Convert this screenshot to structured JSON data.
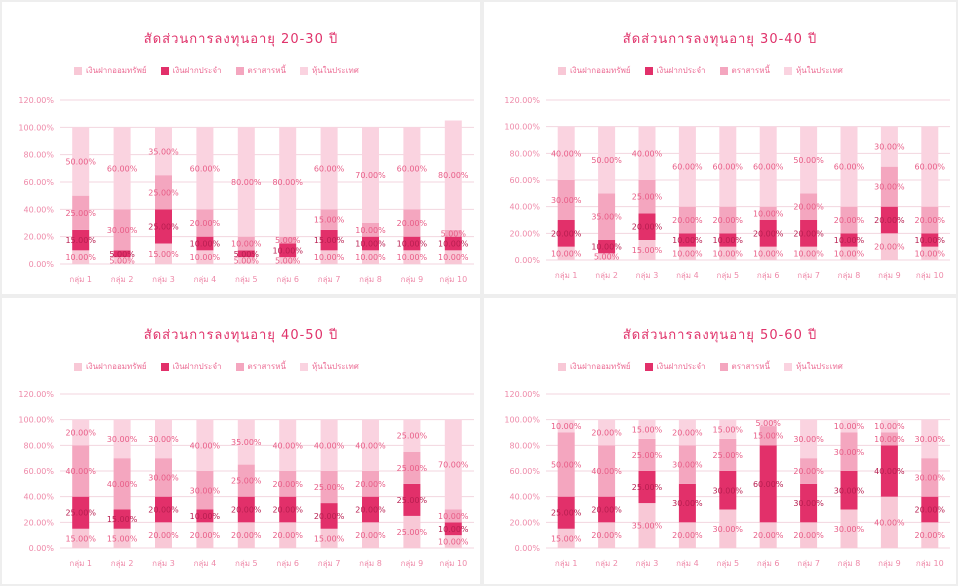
{
  "colors": {
    "s1": "#f8c8d6",
    "s2": "#e2306a",
    "s3": "#f4a6bf",
    "s4": "#fad3e0",
    "grid": "#f3d6df",
    "axis_text": "#ee8aa9",
    "label_text": "#e85d87",
    "title": "#e0336b"
  },
  "chart_data": [
    {
      "type": "bar",
      "stacked": true,
      "title": "สัดส่วนการลงทุนอายุ 20-30 ปี",
      "categories": [
        "กลุ่ม 1",
        "กลุ่ม 2",
        "กลุ่ม 3",
        "กลุ่ม 4",
        "กลุ่ม 5",
        "กลุ่ม 6",
        "กลุ่ม 7",
        "กลุ่ม 8",
        "กลุ่ม 9",
        "กลุ่ม 10"
      ],
      "ylim": [
        0,
        1.2
      ],
      "yticks": [
        "0.00%",
        "20.00%",
        "40.00%",
        "60.00%",
        "80.00%",
        "100.00%",
        "120.00%"
      ],
      "legend": [
        "เงินฝากออมทรัพย์",
        "เงินฝากประจำ",
        "ตราสารหนี้",
        "หุ้นในประเทศ"
      ],
      "legend_position": "top",
      "series": [
        {
          "name": "เงินฝากออมทรัพย์",
          "values": [
            0.1,
            0.05,
            0.15,
            0.1,
            0.05,
            0.05,
            0.1,
            0.1,
            0.1,
            0.1
          ]
        },
        {
          "name": "เงินฝากประจำ",
          "values": [
            0.15,
            0.05,
            0.25,
            0.1,
            0.05,
            0.1,
            0.15,
            0.1,
            0.1,
            0.1
          ]
        },
        {
          "name": "ตราสารหนี้",
          "values": [
            0.25,
            0.3,
            0.25,
            0.2,
            0.1,
            0.05,
            0.15,
            0.1,
            0.2,
            0.05
          ]
        },
        {
          "name": "หุ้นในประเทศ",
          "values": [
            0.5,
            0.6,
            0.35,
            0.6,
            0.8,
            0.8,
            0.6,
            0.7,
            0.6,
            0.8
          ]
        }
      ],
      "labels": [
        [
          "10.00%",
          "5.00%",
          "15.00%",
          "10.00%",
          "5.00%",
          "5.00%",
          "10.00%",
          "10.00%",
          "10.00%",
          "10.00%"
        ],
        [
          "15.00%",
          "5.00%",
          "25.00%",
          "10.00%",
          "5.00%",
          "10.00%",
          "15.00%",
          "10.00%",
          "10.00%",
          "10.00%"
        ],
        [
          "25.00%",
          "30.00%",
          "25.00%",
          "20.00%",
          "10.00%",
          "5.00%",
          "15.00%",
          "10.00%",
          "20.00%",
          "5.00%"
        ],
        [
          "50.00%",
          "60.00%",
          "35.00%",
          "60.00%",
          "80.00%",
          "80.00%",
          "60.00%",
          "70.00%",
          "60.00%",
          "80.00%"
        ]
      ]
    },
    {
      "type": "bar",
      "stacked": true,
      "title": "สัดส่วนการลงทุนอายุ 30-40 ปี",
      "categories": [
        "กลุ่ม 1",
        "กลุ่ม 2",
        "กลุ่ม 3",
        "กลุ่ม 4",
        "กลุ่ม 5",
        "กลุ่ม 6",
        "กลุ่ม 7",
        "กลุ่ม 8",
        "กลุ่ม 9",
        "กลุ่ม 10"
      ],
      "ylim": [
        0,
        1.2
      ],
      "yticks": [
        "0.00%",
        "20.00%",
        "40.00%",
        "60.00%",
        "80.00%",
        "100.00%",
        "120.00%"
      ],
      "legend": [
        "เงินฝากออมทรัพย์",
        "เงินฝากประจำ",
        "ตราสารหนี้",
        "หุ้นในประเทศ"
      ],
      "legend_position": "top",
      "series": [
        {
          "name": "เงินฝากออมทรัพย์",
          "values": [
            0.1,
            0.05,
            0.15,
            0.1,
            0.1,
            0.1,
            0.1,
            0.1,
            0.2,
            0.1
          ]
        },
        {
          "name": "เงินฝากประจำ",
          "values": [
            0.2,
            0.1,
            0.2,
            0.1,
            0.1,
            0.2,
            0.2,
            0.1,
            0.2,
            0.1
          ]
        },
        {
          "name": "ตราสารหนี้",
          "values": [
            0.3,
            0.35,
            0.25,
            0.2,
            0.2,
            0.1,
            0.2,
            0.2,
            0.3,
            0.2
          ]
        },
        {
          "name": "หุ้นในประเทศ",
          "values": [
            0.4,
            0.5,
            0.4,
            0.6,
            0.6,
            0.6,
            0.5,
            0.6,
            0.3,
            0.6
          ]
        }
      ],
      "labels": [
        [
          "10.00%",
          "5.00%",
          "15.00%",
          "10.00%",
          "10.00%",
          "10.00%",
          "10.00%",
          "10.00%",
          "20.00%",
          "10.00%"
        ],
        [
          "20.00%",
          "10.00%",
          "20.00%",
          "10.00%",
          "10.00%",
          "20.00%",
          "20.00%",
          "10.00%",
          "20.00%",
          "10.00%"
        ],
        [
          "30.00%",
          "35.00%",
          "25.00%",
          "20.00%",
          "20.00%",
          "10.00%",
          "20.00%",
          "20.00%",
          "30.00%",
          "20.00%"
        ],
        [
          "40.00%",
          "50.00%",
          "40.00%",
          "60.00%",
          "60.00%",
          "60.00%",
          "50.00%",
          "60.00%",
          "30.00%",
          "60.00%"
        ]
      ]
    },
    {
      "type": "bar",
      "stacked": true,
      "title": "สัดส่วนการลงทุนอายุ 40-50 ปี",
      "categories": [
        "กลุ่ม 1",
        "กลุ่ม 2",
        "กลุ่ม 3",
        "กลุ่ม 4",
        "กลุ่ม 5",
        "กลุ่ม 6",
        "กลุ่ม 7",
        "กลุ่ม 8",
        "กลุ่ม 9",
        "กลุ่ม 10"
      ],
      "ylim": [
        0,
        1.2
      ],
      "yticks": [
        "0.00%",
        "20.00%",
        "40.00%",
        "60.00%",
        "80.00%",
        "100.00%",
        "120.00%"
      ],
      "legend": [
        "เงินฝากออมทรัพย์",
        "เงินฝากประจำ",
        "ตราสารหนี้",
        "หุ้นในประเทศ"
      ],
      "legend_position": "top",
      "series": [
        {
          "name": "เงินฝากออมทรัพย์",
          "values": [
            0.15,
            0.15,
            0.2,
            0.2,
            0.2,
            0.2,
            0.15,
            0.2,
            0.25,
            0.1
          ]
        },
        {
          "name": "เงินฝากประจำ",
          "values": [
            0.25,
            0.15,
            0.2,
            0.1,
            0.2,
            0.2,
            0.2,
            0.2,
            0.25,
            0.1
          ]
        },
        {
          "name": "ตราสารหนี้",
          "values": [
            0.4,
            0.4,
            0.3,
            0.3,
            0.25,
            0.2,
            0.25,
            0.2,
            0.25,
            0.1
          ]
        },
        {
          "name": "หุ้นในประเทศ",
          "values": [
            0.2,
            0.3,
            0.3,
            0.4,
            0.35,
            0.4,
            0.4,
            0.4,
            0.25,
            0.7
          ]
        }
      ],
      "labels": [
        [
          "15.00%",
          "15.00%",
          "20.00%",
          "20.00%",
          "20.00%",
          "20.00%",
          "15.00%",
          "20.00%",
          "25.00%",
          "10.00%"
        ],
        [
          "25.00%",
          "15.00%",
          "20.00%",
          "10.00%",
          "20.00%",
          "20.00%",
          "20.00%",
          "20.00%",
          "25.00%",
          "10.00%"
        ],
        [
          "40.00%",
          "40.00%",
          "30.00%",
          "30.00%",
          "25.00%",
          "20.00%",
          "25.00%",
          "20.00%",
          "25.00%",
          "10.00%"
        ],
        [
          "20.00%",
          "30.00%",
          "30.00%",
          "40.00%",
          "35.00%",
          "40.00%",
          "40.00%",
          "40.00%",
          "25.00%",
          "70.00%"
        ]
      ]
    },
    {
      "type": "bar",
      "stacked": true,
      "title": "สัดส่วนการลงทุนอายุ 50-60 ปี",
      "categories": [
        "กลุ่ม 1",
        "กลุ่ม 2",
        "กลุ่ม 3",
        "กลุ่ม 4",
        "กลุ่ม 5",
        "กลุ่ม 6",
        "กลุ่ม 7",
        "กลุ่ม 8",
        "กลุ่ม 9",
        "กลุ่ม 10"
      ],
      "ylim": [
        0,
        1.2
      ],
      "yticks": [
        "0.00%",
        "20.00%",
        "40.00%",
        "60.00%",
        "80.00%",
        "100.00%",
        "120.00%"
      ],
      "legend": [
        "เงินฝากออมทรัพย์",
        "เงินฝากประจำ",
        "ตราสารหนี้",
        "หุ้นในประเทศ"
      ],
      "legend_position": "top",
      "series": [
        {
          "name": "เงินฝากออมทรัพย์",
          "values": [
            0.15,
            0.2,
            0.35,
            0.2,
            0.3,
            0.2,
            0.2,
            0.3,
            0.4,
            0.2
          ]
        },
        {
          "name": "เงินฝากประจำ",
          "values": [
            0.25,
            0.2,
            0.25,
            0.3,
            0.3,
            0.6,
            0.3,
            0.3,
            0.4,
            0.2
          ]
        },
        {
          "name": "ตราสารหนี้",
          "values": [
            0.5,
            0.4,
            0.25,
            0.3,
            0.25,
            0.15,
            0.2,
            0.3,
            0.1,
            0.3
          ]
        },
        {
          "name": "หุ้นในประเทศ",
          "values": [
            0.1,
            0.2,
            0.15,
            0.2,
            0.15,
            0.05,
            0.3,
            0.1,
            0.1,
            0.3
          ]
        }
      ],
      "labels": [
        [
          "15.00%",
          "20.00%",
          "35.00%",
          "20.00%",
          "30.00%",
          "20.00%",
          "20.00%",
          "30.00%",
          "40.00%",
          "20.00%"
        ],
        [
          "25.00%",
          "20.00%",
          "25.00%",
          "30.00%",
          "30.00%",
          "60.00%",
          "30.00%",
          "30.00%",
          "40.00%",
          "20.00%"
        ],
        [
          "50.00%",
          "40.00%",
          "25.00%",
          "30.00%",
          "25.00%",
          "15.00%",
          "20.00%",
          "30.00%",
          "10.00%",
          "30.00%"
        ],
        [
          "10.00%",
          "20.00%",
          "15.00%",
          "20.00%",
          "15.00%",
          "5.00%",
          "30.00%",
          "10.00%",
          "10.00%",
          "30.00%"
        ]
      ]
    }
  ]
}
